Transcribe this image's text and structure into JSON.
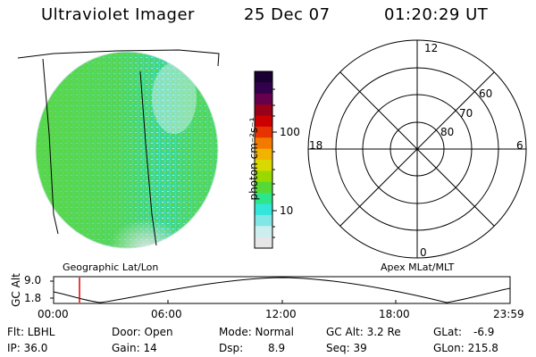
{
  "header": {
    "instrument": "Ultraviolet Imager",
    "date": "25 Dec 07",
    "time": "01:20:29 UT"
  },
  "colorbar": {
    "unit_label": "photon cm⁻²s⁻¹",
    "ticks": [
      "100",
      "10"
    ],
    "colors": [
      "#1a0033",
      "#33004d",
      "#66004d",
      "#99001a",
      "#cc0000",
      "#e63300",
      "#f27a00",
      "#f2b300",
      "#d9d900",
      "#99d900",
      "#55d936",
      "#2ee68a",
      "#33e6d9",
      "#80e6e6",
      "#cceeee",
      "#e6e6e6"
    ]
  },
  "image_panel": {
    "label": "Geographic Lat/Lon"
  },
  "polar_panel": {
    "label": "Apex MLat/MLT",
    "mlt_labels": {
      "top": "12",
      "left": "18",
      "right": "6",
      "bottom": "0"
    },
    "lat_labels": [
      "60",
      "70",
      "80"
    ]
  },
  "orbit_plot": {
    "ylabel": "GC Alt",
    "yticks": [
      "9.0",
      "1.8"
    ],
    "xticks": [
      "00:00",
      "06:00",
      "12:00",
      "18:00",
      "23:59"
    ],
    "marker_time": "01:20"
  },
  "info": {
    "flt": "Flt: LBHL",
    "ip": "IP: 36.0",
    "door": "Door: Open",
    "gain": "Gain: 14",
    "mode": "Mode: Normal",
    "dsp_label": "Dsp:",
    "dsp_value": "8.9",
    "gc_alt": "GC Alt: 3.2 Re",
    "seq": "Seq: 39",
    "glat_label": "GLat:",
    "glat_value": "-6.9",
    "glon": "GLon: 215.8"
  }
}
